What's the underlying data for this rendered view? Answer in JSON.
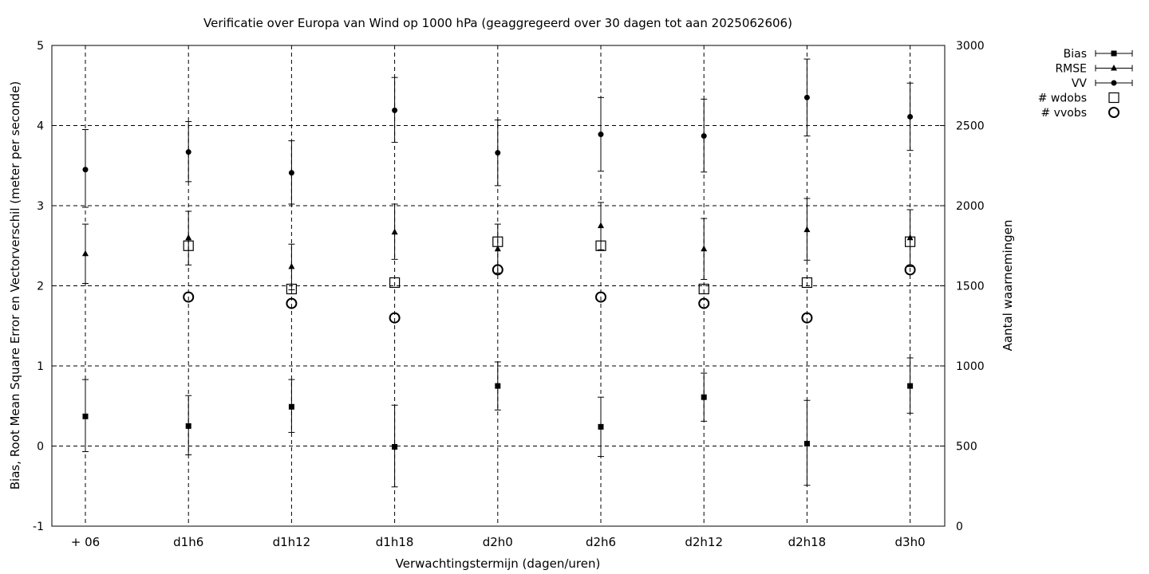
{
  "chart_data": {
    "type": "scatter",
    "title": "Verificatie over Europa van Wind op 1000 hPa (geaggregeerd over 30 dagen tot aan 2025062606)",
    "xlabel": "Verwachtingstermijn (dagen/uren)",
    "ylabel": "Bias, Root Mean Square Error en Vectorverschil (meter per seconde)",
    "y2label": "Aantal waarnemingen",
    "categories": [
      "+ 06",
      "d1h6",
      "d1h12",
      "d1h18",
      "d2h0",
      "d2h6",
      "d2h12",
      "d2h18",
      "d3h0"
    ],
    "ylim": [
      -1,
      5
    ],
    "yticks": [
      "-1",
      "0",
      "1",
      "2",
      "3",
      "4",
      "5"
    ],
    "y2lim": [
      0,
      3000
    ],
    "y2ticks": [
      "0",
      "500",
      "1000",
      "1500",
      "2000",
      "2500",
      "3000"
    ],
    "grid": true,
    "legend_position": "outside-right",
    "series": [
      {
        "name": "Bias",
        "marker": "square",
        "axis": "y1",
        "values": [
          0.37,
          0.25,
          0.49,
          -0.01,
          0.75,
          0.24,
          0.61,
          0.03,
          0.75
        ],
        "err_low": [
          -0.07,
          -0.11,
          0.17,
          -0.51,
          0.45,
          -0.13,
          0.31,
          -0.49,
          0.41
        ],
        "err_high": [
          0.83,
          0.63,
          0.83,
          0.51,
          1.05,
          0.61,
          0.91,
          0.57,
          1.1
        ]
      },
      {
        "name": "RMSE",
        "marker": "triangle",
        "axis": "y1",
        "values": [
          2.4,
          2.6,
          2.24,
          2.67,
          2.46,
          2.75,
          2.46,
          2.7,
          2.6
        ],
        "err_low": [
          2.03,
          2.26,
          1.95,
          2.33,
          2.16,
          2.45,
          2.08,
          2.32,
          2.24
        ],
        "err_high": [
          2.77,
          2.93,
          2.52,
          3.02,
          2.77,
          3.04,
          2.84,
          3.09,
          2.95
        ]
      },
      {
        "name": "VV",
        "marker": "circle",
        "axis": "y1",
        "values": [
          3.45,
          3.67,
          3.41,
          4.19,
          3.66,
          3.89,
          3.87,
          4.35,
          4.11
        ],
        "err_low": [
          2.98,
          3.3,
          3.02,
          3.79,
          3.25,
          3.43,
          3.42,
          3.87,
          3.69
        ],
        "err_high": [
          3.95,
          4.05,
          3.81,
          4.6,
          4.07,
          4.35,
          4.33,
          4.83,
          4.53
        ]
      },
      {
        "name": "# wdobs",
        "marker": "open-square",
        "axis": "y2",
        "values": [
          null,
          1750,
          1480,
          1520,
          1775,
          1750,
          1480,
          1520,
          1775
        ]
      },
      {
        "name": "# vvobs",
        "marker": "open-circle",
        "axis": "y2",
        "values": [
          null,
          1430,
          1390,
          1300,
          1600,
          1430,
          1390,
          1300,
          1600
        ]
      }
    ]
  }
}
